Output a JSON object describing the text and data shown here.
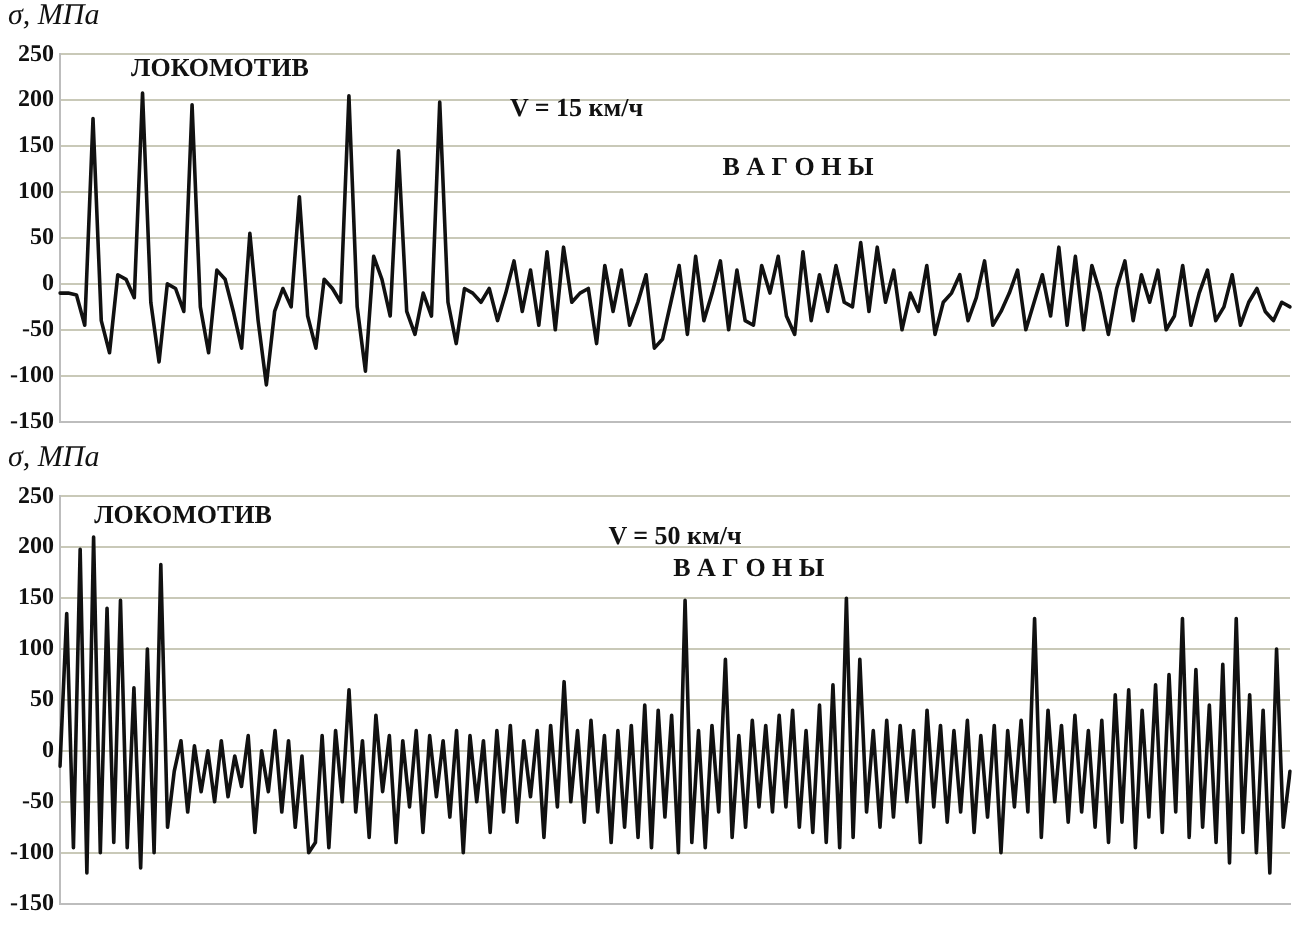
{
  "chart_data": [
    {
      "type": "line",
      "ylabel": "σ, МПа",
      "annotations": [
        "ЛОКОМОТИВ",
        "V = 15 км/ч",
        "В А Г О Н Ы"
      ],
      "ylim": [
        -150,
        250
      ],
      "yticks": [
        -150,
        -100,
        -50,
        0,
        50,
        100,
        150,
        200,
        250
      ],
      "grid": "y",
      "legend": false,
      "tick_labels": "y",
      "marker": "none",
      "line_style": "solid",
      "categories": [
        null,
        null,
        null,
        null,
        null,
        null,
        null,
        null,
        null,
        null,
        null,
        null,
        null,
        null,
        null,
        null,
        null,
        null,
        null,
        null,
        null,
        null,
        null,
        null,
        null,
        null,
        null,
        null,
        null,
        null,
        null,
        null,
        null,
        null,
        null,
        null,
        null,
        null,
        null,
        null,
        null,
        null,
        null,
        null,
        null,
        null,
        null,
        null,
        null,
        null,
        null,
        null,
        null,
        null,
        null,
        null,
        null,
        null,
        null,
        null,
        null,
        null,
        null,
        null,
        null,
        null,
        null,
        null,
        null,
        null,
        null,
        null,
        null,
        null,
        null,
        null,
        null,
        null,
        null,
        null,
        null,
        null,
        null,
        null,
        null,
        null,
        null,
        null,
        null,
        null,
        null,
        null,
        null,
        null,
        null,
        null,
        null,
        null,
        null,
        null,
        null,
        null,
        null,
        null,
        null,
        null,
        null,
        null,
        null,
        null,
        null,
        null,
        null,
        null,
        null,
        null,
        null,
        null,
        null,
        null,
        null,
        null,
        null,
        null,
        null,
        null,
        null,
        null,
        null,
        null,
        null,
        null,
        null,
        null,
        null,
        null,
        null,
        null,
        null,
        null,
        null,
        null,
        null,
        null,
        null,
        null,
        null,
        null,
        null,
        null
      ],
      "series": [
        {
          "color": "#111111",
          "values": [
            -10,
            -10,
            -12,
            -45,
            180,
            -40,
            -75,
            10,
            5,
            -15,
            208,
            -20,
            -85,
            0,
            -5,
            -30,
            195,
            -25,
            -75,
            15,
            5,
            -30,
            -70,
            55,
            -40,
            -110,
            -30,
            -5,
            -25,
            95,
            -35,
            -70,
            5,
            -5,
            -20,
            205,
            -25,
            -95,
            30,
            5,
            -35,
            145,
            -30,
            -55,
            -10,
            -35,
            198,
            -20,
            -65,
            -5,
            -10,
            -20,
            -5,
            -40,
            -10,
            25,
            -30,
            15,
            -45,
            35,
            -50,
            40,
            -20,
            -10,
            -5,
            -65,
            20,
            -30,
            15,
            -45,
            -20,
            10,
            -70,
            -60,
            -20,
            20,
            -55,
            30,
            -40,
            -10,
            25,
            -50,
            15,
            -40,
            -45,
            20,
            -10,
            30,
            -35,
            -55,
            35,
            -40,
            10,
            -30,
            20,
            -20,
            -25,
            45,
            -30,
            40,
            -20,
            15,
            -50,
            -10,
            -30,
            20,
            -55,
            -20,
            -10,
            10,
            -40,
            -15,
            25,
            -45,
            -30,
            -10,
            15,
            -50,
            -20,
            10,
            -35,
            40,
            -45,
            30,
            -50,
            20,
            -10,
            -55,
            -5,
            25,
            -40,
            10,
            -20,
            15,
            -50,
            -35,
            20,
            -45,
            -10,
            15,
            -40,
            -25,
            10,
            -45,
            -20,
            -5,
            -30,
            -40,
            -20,
            -25
          ]
        }
      ]
    },
    {
      "type": "line",
      "ylabel": "σ, МПа",
      "annotations": [
        "ЛОКОМОТИВ",
        "V = 50 км/ч",
        "В А Г О Н Ы"
      ],
      "ylim": [
        -150,
        250
      ],
      "yticks": [
        -150,
        -100,
        -50,
        0,
        50,
        100,
        150,
        200,
        250
      ],
      "grid": "y",
      "legend": false,
      "tick_labels": "y",
      "marker": "none",
      "line_style": "solid",
      "categories": [
        null,
        null,
        null,
        null,
        null,
        null,
        null,
        null,
        null,
        null,
        null,
        null,
        null,
        null,
        null,
        null,
        null,
        null,
        null,
        null,
        null,
        null,
        null,
        null,
        null,
        null,
        null,
        null,
        null,
        null,
        null,
        null,
        null,
        null,
        null,
        null,
        null,
        null,
        null,
        null,
        null,
        null,
        null,
        null,
        null,
        null,
        null,
        null,
        null,
        null,
        null,
        null,
        null,
        null,
        null,
        null,
        null,
        null,
        null,
        null,
        null,
        null,
        null,
        null,
        null,
        null,
        null,
        null,
        null,
        null,
        null,
        null,
        null,
        null,
        null,
        null,
        null,
        null,
        null,
        null,
        null,
        null,
        null,
        null,
        null,
        null,
        null,
        null,
        null,
        null,
        null,
        null,
        null,
        null,
        null,
        null,
        null,
        null,
        null,
        null,
        null,
        null,
        null,
        null,
        null,
        null,
        null,
        null,
        null,
        null,
        null,
        null,
        null,
        null,
        null,
        null,
        null,
        null,
        null,
        null,
        null,
        null,
        null,
        null,
        null,
        null,
        null,
        null,
        null,
        null,
        null,
        null,
        null,
        null,
        null,
        null,
        null,
        null,
        null,
        null,
        null,
        null,
        null,
        null,
        null,
        null,
        null,
        null,
        null,
        null,
        null,
        null,
        null,
        null,
        null,
        null,
        null,
        null,
        null,
        null,
        null,
        null,
        null,
        null,
        null,
        null,
        null,
        null,
        null,
        null,
        null,
        null,
        null,
        null,
        null,
        null,
        null,
        null,
        null,
        null,
        null,
        null,
        null,
        null
      ],
      "series": [
        {
          "color": "#111111",
          "values": [
            -15,
            135,
            -95,
            198,
            -120,
            210,
            -100,
            140,
            -90,
            148,
            -95,
            62,
            -115,
            100,
            -100,
            183,
            -75,
            -20,
            10,
            -60,
            5,
            -40,
            0,
            -50,
            10,
            -45,
            -5,
            -35,
            15,
            -80,
            0,
            -40,
            20,
            -60,
            10,
            -75,
            -5,
            -100,
            -90,
            15,
            -95,
            20,
            -50,
            60,
            -60,
            10,
            -85,
            35,
            -40,
            15,
            -90,
            10,
            -55,
            20,
            -80,
            15,
            -45,
            10,
            -65,
            20,
            -100,
            15,
            -50,
            10,
            -80,
            20,
            -60,
            25,
            -70,
            10,
            -45,
            20,
            -85,
            25,
            -55,
            68,
            -50,
            20,
            -70,
            30,
            -60,
            15,
            -90,
            20,
            -75,
            25,
            -85,
            45,
            -95,
            40,
            -65,
            35,
            -100,
            148,
            -90,
            20,
            -95,
            25,
            -60,
            90,
            -85,
            15,
            -75,
            30,
            -55,
            25,
            -60,
            35,
            -55,
            40,
            -75,
            20,
            -80,
            45,
            -90,
            65,
            -95,
            150,
            -85,
            90,
            -60,
            20,
            -75,
            30,
            -65,
            25,
            -50,
            20,
            -90,
            40,
            -55,
            25,
            -70,
            20,
            -60,
            30,
            -80,
            15,
            -65,
            25,
            -100,
            20,
            -55,
            30,
            -60,
            130,
            -85,
            40,
            -50,
            25,
            -70,
            35,
            -60,
            20,
            -75,
            30,
            -90,
            55,
            -70,
            60,
            -95,
            40,
            -65,
            65,
            -80,
            75,
            -60,
            130,
            -85,
            80,
            -75,
            45,
            -90,
            85,
            -110,
            130,
            -80,
            55,
            -100,
            40,
            -120,
            100,
            -75,
            -20
          ]
        }
      ]
    }
  ]
}
